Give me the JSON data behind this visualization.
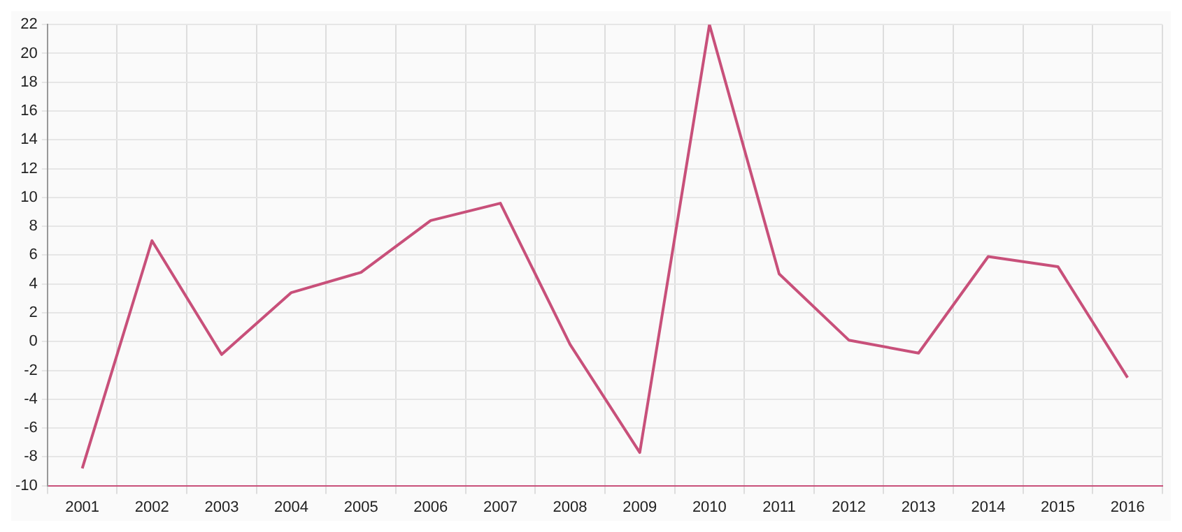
{
  "chart_data": {
    "type": "line",
    "categories": [
      "2001",
      "2002",
      "2003",
      "2004",
      "2005",
      "2006",
      "2007",
      "2008",
      "2009",
      "2010",
      "2011",
      "2012",
      "2013",
      "2014",
      "2015",
      "2016"
    ],
    "series": [
      {
        "color": "#c8507a",
        "values": [
          -8.8,
          7.0,
          -0.9,
          3.4,
          4.8,
          8.4,
          9.6,
          -0.2,
          -7.7,
          22,
          4.7,
          0.1,
          -0.8,
          5.9,
          5.2,
          -2.5
        ]
      }
    ],
    "ylim": [
      -10,
      22
    ],
    "yticks": [
      -10,
      -8,
      -6,
      -4,
      -2,
      0,
      2,
      4,
      6,
      8,
      10,
      12,
      14,
      16,
      18,
      20,
      22
    ],
    "grid": true,
    "legend": false,
    "marker": "none",
    "line_style": "solid"
  }
}
